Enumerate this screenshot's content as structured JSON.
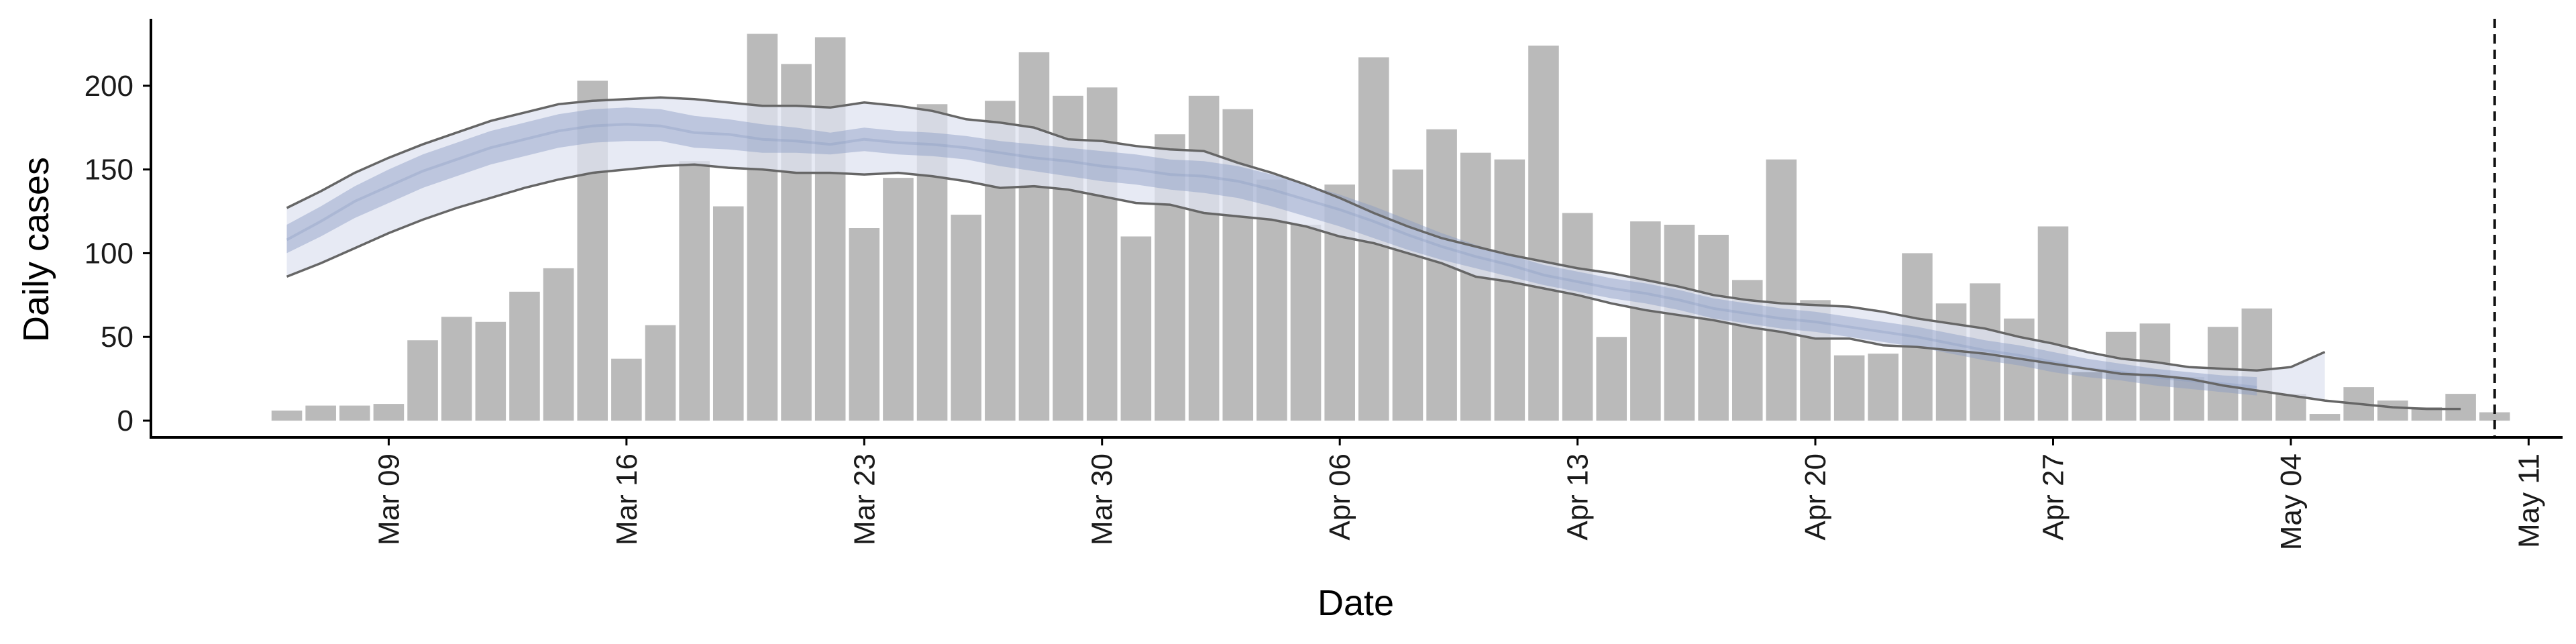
{
  "chart_data": {
    "type": "bar",
    "xlabel": "Date",
    "ylabel": "Daily cases",
    "ylim": [
      -10,
      240
    ],
    "yticks": [
      0,
      50,
      100,
      150,
      200
    ],
    "x_range": [
      "2020-03-02",
      "2020-05-12"
    ],
    "xticks": [
      {
        "date": "2020-03-09",
        "label": "Mar 09"
      },
      {
        "date": "2020-03-16",
        "label": "Mar 16"
      },
      {
        "date": "2020-03-23",
        "label": "Mar 23"
      },
      {
        "date": "2020-03-30",
        "label": "Mar 30"
      },
      {
        "date": "2020-04-06",
        "label": "Apr 06"
      },
      {
        "date": "2020-04-13",
        "label": "Apr 13"
      },
      {
        "date": "2020-04-20",
        "label": "Apr 20"
      },
      {
        "date": "2020-04-27",
        "label": "Apr 27"
      },
      {
        "date": "2020-05-04",
        "label": "May 04"
      },
      {
        "date": "2020-05-11",
        "label": "May 11"
      }
    ],
    "bar_start_date": "2020-03-06",
    "bar_values": [
      6,
      9,
      9,
      10,
      48,
      62,
      59,
      77,
      91,
      203,
      37,
      57,
      155,
      128,
      231,
      213,
      229,
      115,
      145,
      189,
      123,
      191,
      220,
      194,
      199,
      110,
      171,
      194,
      186,
      144,
      117,
      141,
      217,
      150,
      174,
      160,
      156,
      224,
      124,
      50,
      119,
      117,
      111,
      84,
      156,
      72,
      39,
      40,
      100,
      70,
      82,
      61,
      116,
      29,
      53,
      58,
      26,
      56,
      67,
      16,
      4,
      20,
      12,
      8,
      16,
      5
    ],
    "bar_color": "#bababa",
    "band_start_date": "2020-03-06",
    "band_median": [
      108,
      119,
      131,
      140,
      149,
      156,
      163,
      168,
      173,
      176,
      177,
      176,
      172,
      171,
      168,
      167,
      165,
      168,
      166,
      165,
      163,
      160,
      157,
      155,
      152,
      150,
      147,
      146,
      143,
      138,
      132,
      126,
      119,
      111,
      104,
      98,
      93,
      87,
      83,
      79,
      76,
      72,
      67,
      64,
      61,
      59,
      56,
      53,
      50,
      46,
      42,
      39,
      35,
      31,
      29,
      26,
      24,
      22,
      20
    ],
    "band_inner_lower": [
      100,
      110,
      121,
      130,
      139,
      146,
      153,
      158,
      163,
      166,
      167,
      167,
      163,
      162,
      160,
      160,
      159,
      161,
      159,
      158,
      156,
      152,
      149,
      146,
      143,
      141,
      138,
      136,
      133,
      128,
      122,
      116,
      109,
      102,
      96,
      91,
      86,
      81,
      77,
      73,
      70,
      66,
      61,
      58,
      55,
      53,
      50,
      47,
      44,
      40,
      36,
      33,
      29,
      26,
      24,
      21,
      19,
      17,
      15
    ],
    "band_inner_upper": [
      117,
      128,
      140,
      150,
      159,
      166,
      173,
      178,
      183,
      186,
      187,
      186,
      182,
      180,
      177,
      175,
      172,
      175,
      173,
      172,
      170,
      167,
      165,
      163,
      161,
      159,
      156,
      155,
      152,
      147,
      141,
      135,
      128,
      120,
      112,
      105,
      99,
      93,
      89,
      85,
      82,
      78,
      73,
      70,
      67,
      65,
      62,
      59,
      56,
      52,
      48,
      45,
      41,
      37,
      34,
      31,
      29,
      27,
      26
    ],
    "band_outer_lower": [
      86,
      94,
      103,
      112,
      120,
      127,
      133,
      139,
      144,
      148,
      150,
      152,
      153,
      151,
      150,
      148,
      148,
      147,
      148,
      146,
      143,
      139,
      140,
      138,
      134,
      130,
      129,
      124,
      122,
      120,
      116,
      110,
      106,
      100,
      94,
      86,
      83,
      79,
      75,
      70,
      66,
      63,
      60,
      56,
      53,
      49,
      49,
      45,
      44,
      42,
      40,
      37,
      34,
      31,
      28,
      27,
      25,
      21,
      18,
      15,
      12,
      10,
      8,
      7,
      7
    ],
    "band_outer_upper": [
      127,
      137,
      148,
      157,
      165,
      172,
      179,
      184,
      189,
      191,
      192,
      193,
      192,
      190,
      188,
      188,
      187,
      190,
      188,
      185,
      180,
      178,
      175,
      168,
      167,
      164,
      162,
      161,
      154,
      148,
      141,
      133,
      124,
      116,
      109,
      104,
      99,
      95,
      91,
      88,
      84,
      80,
      75,
      72,
      70,
      69,
      68,
      65,
      61,
      58,
      55,
      50,
      46,
      41,
      37,
      35,
      32,
      31,
      30,
      32,
      41
    ],
    "band_inner_color": "#8a9cc4",
    "band_outer_color": "#dfe3f0",
    "line_color": "#666666",
    "vline_date": "2020-05-10"
  }
}
